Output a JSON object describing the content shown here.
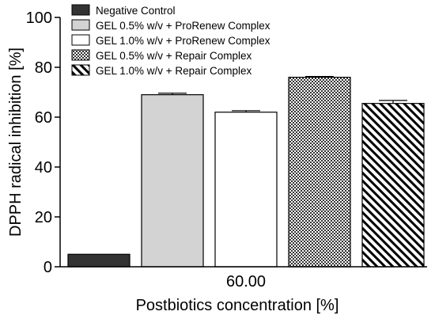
{
  "chart_data": {
    "type": "bar",
    "title": "",
    "xlabel": "Postbiotics concentration [%]",
    "ylabel": "DPPH radical inhibition [%]",
    "ylim": [
      0,
      100
    ],
    "yticks": [
      0,
      20,
      40,
      60,
      80,
      100
    ],
    "categories": [
      "60.00"
    ],
    "legend_position": "top-left",
    "grid": false,
    "series": [
      {
        "name": "Negative Control",
        "values": [
          5
        ],
        "error": [
          0
        ],
        "color": "#333333",
        "pattern": "solid-dark"
      },
      {
        "name": "GEL 0.5% w/v + ProRenew Complex",
        "values": [
          69
        ],
        "error": [
          0.6
        ],
        "color": "#d3d3d3",
        "pattern": "solid-light"
      },
      {
        "name": "GEL 1.0% w/v + ProRenew Complex",
        "values": [
          62
        ],
        "error": [
          0.6
        ],
        "color": "#ffffff",
        "pattern": "white"
      },
      {
        "name": "GEL 0.5% w/v + Repair Complex",
        "values": [
          76
        ],
        "error": [
          0.3
        ],
        "color": "#555555",
        "pattern": "checker"
      },
      {
        "name": "GEL 1.0% w/v + Repair Complex",
        "values": [
          65.5
        ],
        "error": [
          1.2
        ],
        "color": "#000000",
        "pattern": "diagonal"
      }
    ]
  }
}
